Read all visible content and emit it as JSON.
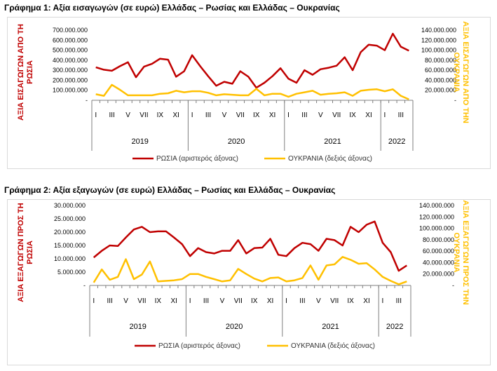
{
  "colors": {
    "russia": "#c00000",
    "ukraine": "#ffc000",
    "axis": "#7f7f7f"
  },
  "titles": {
    "chart1": "Γράφημα 1: Αξία εισαγωγών (σε ευρώ) Ελλάδας – Ρωσίας και Ελλάδας – Ουκρανίας",
    "chart2": "Γράφημα 2: Αξία εξαγωγών (σε ευρώ) Ελλάδας – Ρωσίας και Ελλάδας – Ουκρανίας"
  },
  "chart_data": [
    {
      "type": "line",
      "title": "Γράφημα 1: Αξία εισαγωγών (σε ευρώ) Ελλάδας – Ρωσίας και Ελλάδας – Ουκρανίας",
      "ylabel_left": [
        "ΑΞΙΑ ΕΙΣΑΓΩΓΩΝ ΑΠΟ ΤΗ",
        "ΡΩΣΙΑ"
      ],
      "ylabel_right": [
        "ΑΞΙΑ ΕΙΣΑΓΩΓΩΝ ΑΠΟ ΤΗΝ",
        "ΟΥΚΡΑΝΙΑ"
      ],
      "ylim_left": [
        0,
        700000000
      ],
      "ylim_right": [
        0,
        140000000
      ],
      "yticks_left": [
        "-",
        "100.000.000",
        "200.000.000",
        "300.000.000",
        "400.000.000",
        "500.000.000",
        "600.000.000",
        "700.000.000"
      ],
      "yticks_right": [
        "-",
        "20.000.000",
        "40.000.000",
        "60.000.000",
        "80.000.000",
        "100.000.000",
        "120.000.000",
        "140.000.000"
      ],
      "month_labels": [
        "I",
        "III",
        "V",
        "VII",
        "IX",
        "XI",
        "I",
        "III",
        "V",
        "VII",
        "IX",
        "XI",
        "I",
        "III",
        "V",
        "VII",
        "IX",
        "XI",
        "I",
        "III"
      ],
      "years": [
        "2019",
        "2020",
        "2021",
        "2022"
      ],
      "months_per_year": [
        12,
        12,
        12,
        4
      ],
      "legend": "bottom",
      "series": [
        {
          "name": "ΡΩΣΙΑ (αριστερός άξονας)",
          "axis": "left",
          "values": [
            330000000,
            305000000,
            295000000,
            340000000,
            380000000,
            230000000,
            335000000,
            365000000,
            415000000,
            405000000,
            235000000,
            290000000,
            450000000,
            340000000,
            240000000,
            145000000,
            185000000,
            165000000,
            290000000,
            235000000,
            125000000,
            175000000,
            240000000,
            320000000,
            215000000,
            175000000,
            300000000,
            255000000,
            310000000,
            325000000,
            345000000,
            430000000,
            300000000,
            480000000,
            555000000,
            545000000,
            500000000,
            665000000,
            535000000,
            495000000
          ]
        },
        {
          "name": "ΟΥΚΡΑΝΙΑ (δεξιός άξονας)",
          "axis": "right",
          "values": [
            12000000,
            9000000,
            31000000,
            21000000,
            10000000,
            10000000,
            10000000,
            10000000,
            13000000,
            14000000,
            19000000,
            16000000,
            18000000,
            18000000,
            15000000,
            10000000,
            12000000,
            11000000,
            10000000,
            10000000,
            23000000,
            10000000,
            13000000,
            13000000,
            7000000,
            13000000,
            16000000,
            19000000,
            11000000,
            13000000,
            14000000,
            16000000,
            9000000,
            19000000,
            21000000,
            22000000,
            18000000,
            22000000,
            9000000,
            2000000
          ]
        }
      ]
    },
    {
      "type": "line",
      "title": "Γράφημα 2: Αξία εξαγωγών (σε ευρώ) Ελλάδας – Ρωσίας και Ελλάδας – Ουκρανίας",
      "ylabel_left": [
        "ΑΞΙΑ ΕΞΑΓΩΓΩΝ ΠΡΟΣ ΤΗ",
        "ΡΩΣΙΑ"
      ],
      "ylabel_right": [
        "ΑΞΙΑ ΕΞΑΓΩΓΩΝ ΠΡΟΣ ΤΗΝ",
        "ΟΥΚΡΑΝΙΑ"
      ],
      "ylim_left": [
        0,
        30000000
      ],
      "ylim_right": [
        0,
        140000000
      ],
      "yticks_left": [
        "-",
        "5.000.000",
        "10.000.000",
        "15.000.000",
        "20.000.000",
        "25.000.000",
        "30.000.000"
      ],
      "yticks_right": [
        "-",
        "20.000.000",
        "40.000.000",
        "60.000.000",
        "80.000.000",
        "100.000.000",
        "120.000.000",
        "140.000.000"
      ],
      "month_labels": [
        "I",
        "III",
        "V",
        "VII",
        "IX",
        "XI",
        "I",
        "III",
        "V",
        "VII",
        "IX",
        "XI",
        "I",
        "III",
        "V",
        "VII",
        "IX",
        "XI",
        "I",
        "III"
      ],
      "years": [
        "2019",
        "2020",
        "2021",
        "2022"
      ],
      "months_per_year": [
        12,
        12,
        12,
        4
      ],
      "legend": "bottom",
      "series": [
        {
          "name": "ΡΩΣΙΑ (αριστερός άξονας)",
          "axis": "left",
          "values": [
            10500000,
            13000000,
            15000000,
            14800000,
            18000000,
            21000000,
            22000000,
            20000000,
            20300000,
            20300000,
            18000000,
            15500000,
            11000000,
            14000000,
            12500000,
            12000000,
            13000000,
            13000000,
            17000000,
            12000000,
            14000000,
            14200000,
            17500000,
            11500000,
            11000000,
            14000000,
            16000000,
            15500000,
            13000000,
            17500000,
            17000000,
            15000000,
            22000000,
            20000000,
            22800000,
            24000000,
            16000000,
            12500000,
            5500000,
            7500000
          ]
        },
        {
          "name": "ΟΥΚΡΑΝΙΑ (δεξιός άξονας)",
          "axis": "right",
          "values": [
            5000000,
            28000000,
            10000000,
            15000000,
            46000000,
            11000000,
            19000000,
            42000000,
            7000000,
            8000000,
            9000000,
            11000000,
            20000000,
            20000000,
            15000000,
            11000000,
            7000000,
            9000000,
            29000000,
            20000000,
            12000000,
            7000000,
            13000000,
            14000000,
            7000000,
            9000000,
            13000000,
            35000000,
            10000000,
            35000000,
            37000000,
            50000000,
            45000000,
            38000000,
            39000000,
            28000000,
            15000000,
            8000000,
            2000000,
            7000000
          ]
        }
      ]
    }
  ]
}
